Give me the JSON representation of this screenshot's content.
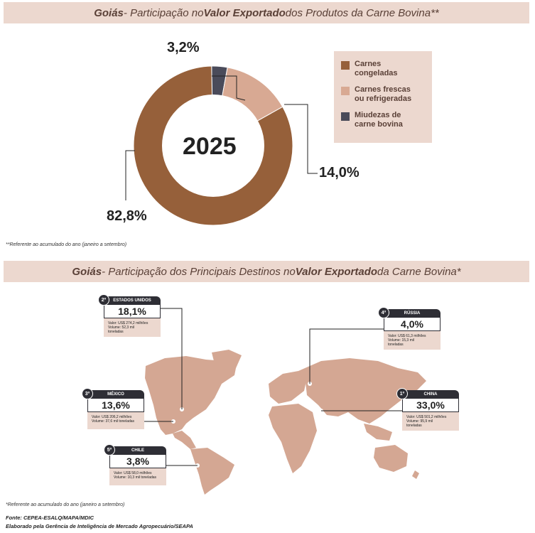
{
  "section1": {
    "title_parts": [
      "Goiás",
      " - Participação no ",
      "Valor Exportado",
      " dos Produtos da Carne Bovina**"
    ],
    "year": "2025",
    "note": "**Referente ao acumulado do ano (janeiro a setembro)"
  },
  "chart_data": {
    "type": "pie",
    "categories": [
      "Carnes congeladas",
      "Carnes frescas ou refrigeradas",
      "Miudezas de carne bovina"
    ],
    "values": [
      82.8,
      14.0,
      3.2
    ],
    "labels": [
      "82,8%",
      "14,0%",
      "3,2%"
    ],
    "colors": [
      "#96603a",
      "#d8a993",
      "#4a4b5a"
    ],
    "legend_placement": "right"
  },
  "legend": [
    {
      "label_1": "Carnes",
      "label_2": "congeladas",
      "color": "#96603a"
    },
    {
      "label_1": "Carnes frescas",
      "label_2": "ou refrigeradas",
      "color": "#d8a993"
    },
    {
      "label_1": "Miudezas de",
      "label_2": "carne bovina",
      "color": "#4a4b5a"
    }
  ],
  "section2": {
    "title_parts": [
      "Goiás",
      " - Participação dos Principais Destinos no ",
      "Valor Exportado",
      " da Carne Bovina*"
    ],
    "note": "*Referente ao acumulado do ano (janeiro a setembro)"
  },
  "destinations": [
    {
      "rank": "2º",
      "country": "ESTADOS UNIDOS",
      "pct": "18,1%",
      "value": "Valor: US$ 274,2 milhões",
      "volume": "Volume: 52,3 mil",
      "volume_2": "toneladas"
    },
    {
      "rank": "4º",
      "country": "RÚSSIA",
      "pct": "4,0%",
      "value": "Valor: US$ 61,3 milhões",
      "volume": "Volume: 15,3 mil",
      "volume_2": "toneladas"
    },
    {
      "rank": "3º",
      "country": "MÉXICO",
      "pct": "13,6%",
      "value": "Valor: US$ 206,2 milhões",
      "volume": "Volume: 37,6 mil toneladas",
      "volume_2": ""
    },
    {
      "rank": "1º",
      "country": "CHINA",
      "pct": "33,0%",
      "value": "Valor: US$ 501,2 milhões",
      "volume": "Volume: 95,9 mil",
      "volume_2": "toneladas"
    },
    {
      "rank": "5º",
      "country": "CHILE",
      "pct": "3,8%",
      "value": "Valor: US$ 58,0 milhões",
      "volume": "Volume: 10,3 mil toneladas",
      "volume_2": ""
    }
  ],
  "footer": {
    "source": "Fonte: CEPEA-ESALQ/MAPA/MDIC",
    "credit": "Elaborado pela Gerência de Inteligência de Mercado Agropecuário/SEAPA"
  }
}
